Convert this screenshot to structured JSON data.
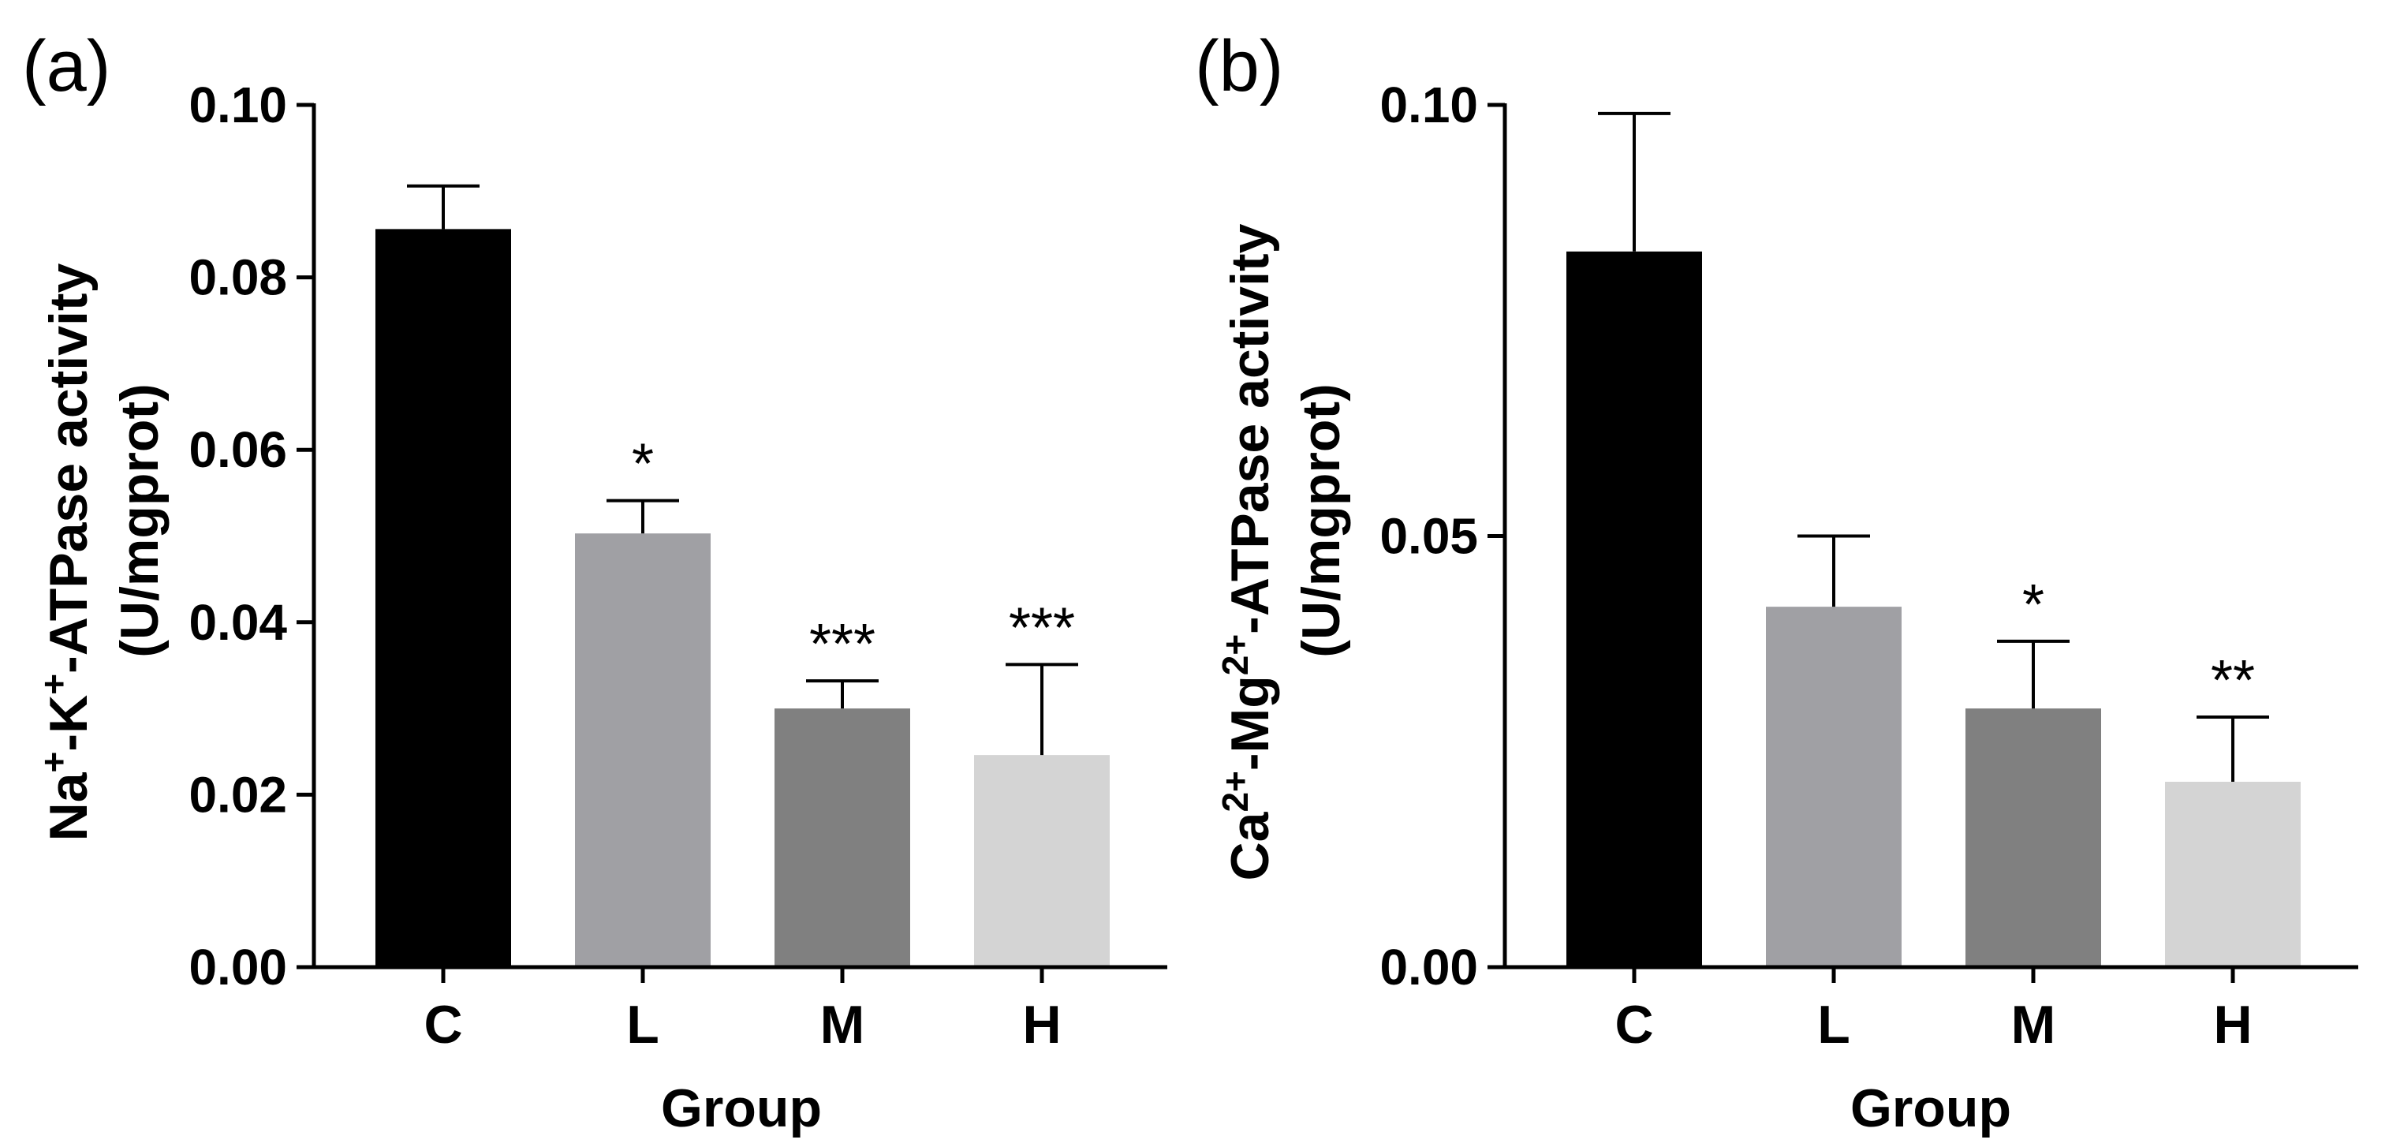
{
  "chart_data": [
    {
      "type": "bar",
      "panel": "(a)",
      "categories": [
        "C",
        "L",
        "M",
        "H"
      ],
      "values": [
        0.0856,
        0.0503,
        0.03,
        0.0246
      ],
      "errors": [
        0.005,
        0.0038,
        0.0032,
        0.0105
      ],
      "significance": [
        "",
        "*",
        "***",
        "***"
      ],
      "colors": [
        "#000000",
        "#a0a0a4",
        "#808080",
        "#d4d4d4"
      ],
      "ylim": [
        0,
        0.1
      ],
      "yticks": [
        0.0,
        0.02,
        0.04,
        0.06,
        0.08,
        0.1
      ],
      "ytick_labels": [
        "0.00",
        "0.02",
        "0.04",
        "0.06",
        "0.08",
        "0.10"
      ],
      "xlabel": "Group",
      "ylabel_line1_parts": [
        "Na",
        "+",
        "-K",
        "+",
        "-ATPase activity"
      ],
      "ylabel_line2": "(U/mgprot)"
    },
    {
      "type": "bar",
      "panel": "(b)",
      "categories": [
        "C",
        "L",
        "M",
        "H"
      ],
      "values": [
        0.083,
        0.0418,
        0.03,
        0.0215
      ],
      "errors": [
        0.016,
        0.0082,
        0.0078,
        0.0075
      ],
      "significance": [
        "",
        "",
        "*",
        "**"
      ],
      "colors": [
        "#000000",
        "#a0a0a4",
        "#808080",
        "#d4d4d4"
      ],
      "ylim": [
        0,
        0.1
      ],
      "yticks": [
        0.0,
        0.05,
        0.1
      ],
      "ytick_labels": [
        "0.00",
        "0.05",
        "0.10"
      ],
      "xlabel": "Group",
      "ylabel_line1_parts": [
        "Ca",
        "2+",
        "-Mg",
        "2+",
        "-ATPase activity"
      ],
      "ylabel_line2": "(U/mgprot)"
    }
  ]
}
